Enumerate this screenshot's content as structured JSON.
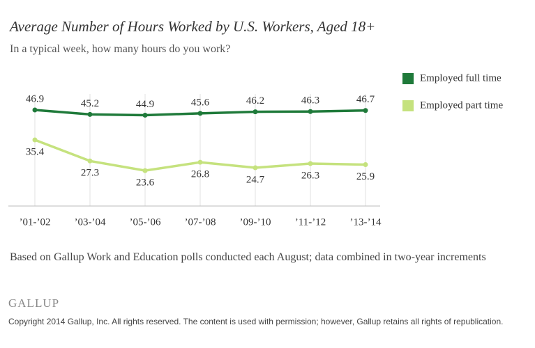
{
  "chart_data": {
    "type": "line",
    "title": "Average Number of Hours Worked by U.S. Workers, Aged 18+",
    "subtitle": "In a typical week, how many hours do you work?",
    "categories": [
      "’01-’02",
      "’03-’04",
      "’05-’06",
      "’07-’08",
      "’09-’10",
      "’11-’12",
      "’13-’14"
    ],
    "series": [
      {
        "name": "Employed full time",
        "color": "#1f7a3a",
        "values": [
          46.9,
          45.2,
          44.9,
          45.6,
          46.2,
          46.3,
          46.7
        ]
      },
      {
        "name": "Employed part time",
        "color": "#c5e27e",
        "values": [
          35.4,
          27.3,
          23.6,
          26.8,
          24.7,
          26.3,
          25.9
        ]
      }
    ],
    "ylim": [
      10,
      60
    ],
    "grid": true,
    "note": "Based on Gallup Work and Education polls conducted each August; data combined in two-year increments",
    "brand": "GALLUP",
    "copyright": "Copyright 2014 Gallup, Inc. All rights reserved. The content is used with permission; however, Gallup retains all rights of republication."
  }
}
